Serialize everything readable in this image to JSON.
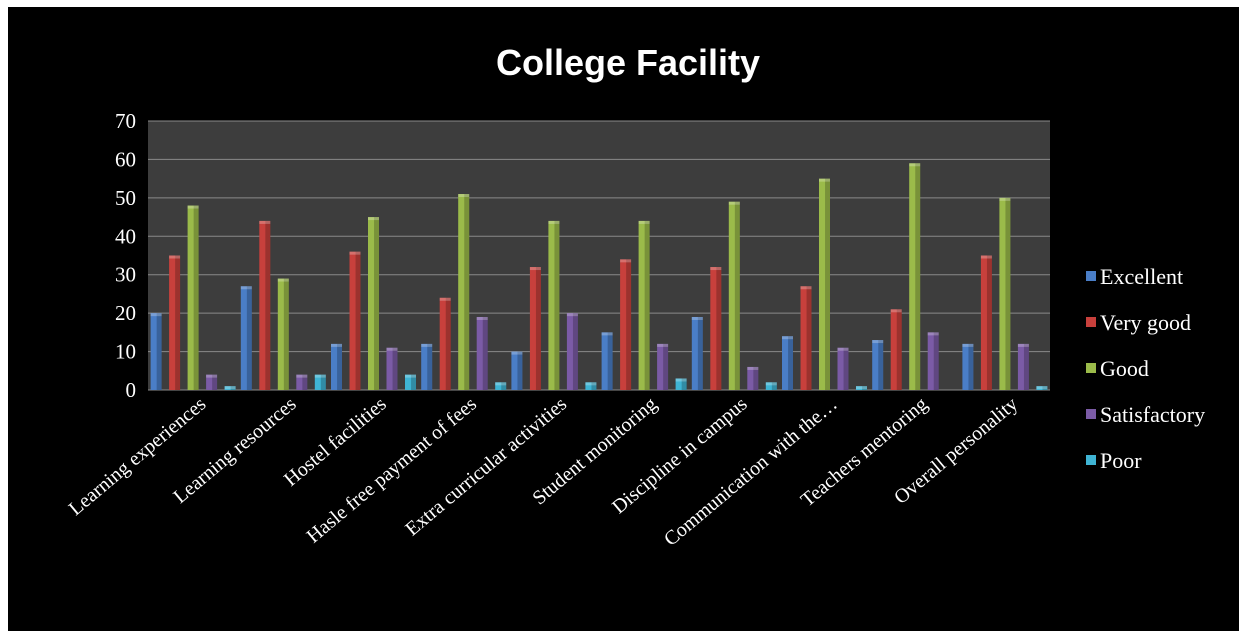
{
  "chart_data": {
    "type": "bar",
    "title": "College Facility",
    "xlabel": "",
    "ylabel": "",
    "ylim": [
      0,
      70
    ],
    "yticks": [
      0,
      10,
      20,
      30,
      40,
      50,
      60,
      70
    ],
    "grid": true,
    "legend_position": "right",
    "categories": [
      "Learning experiences",
      "Learning resources",
      "Hostel facilities",
      "Hasle free payment of fees",
      "Extra curricular activities",
      "Student  monitoring",
      "Discipline in campus",
      "Communication with the…",
      "Teachers mentoring",
      "Overall personality"
    ],
    "series": [
      {
        "name": "Excellent",
        "color": "#4a7ec7",
        "values": [
          20,
          27,
          12,
          12,
          10,
          15,
          19,
          14,
          13,
          12
        ]
      },
      {
        "name": "Very good",
        "color": "#c8403c",
        "values": [
          35,
          44,
          36,
          24,
          32,
          34,
          32,
          27,
          21,
          35
        ]
      },
      {
        "name": "Good",
        "color": "#9bbb4a",
        "values": [
          48,
          29,
          45,
          51,
          44,
          44,
          49,
          55,
          59,
          50
        ]
      },
      {
        "name": "Satisfactory",
        "color": "#7b5ba6",
        "values": [
          4,
          4,
          11,
          19,
          20,
          12,
          6,
          11,
          15,
          12
        ]
      },
      {
        "name": "Poor",
        "color": "#3fb4d4",
        "values": [
          1,
          4,
          4,
          2,
          2,
          3,
          2,
          1,
          0,
          1
        ]
      }
    ],
    "colors": {
      "background": "#000000",
      "plot_area": "#3d3d3d",
      "gridline": "#8a8a8a",
      "text": "#ffffff"
    }
  }
}
